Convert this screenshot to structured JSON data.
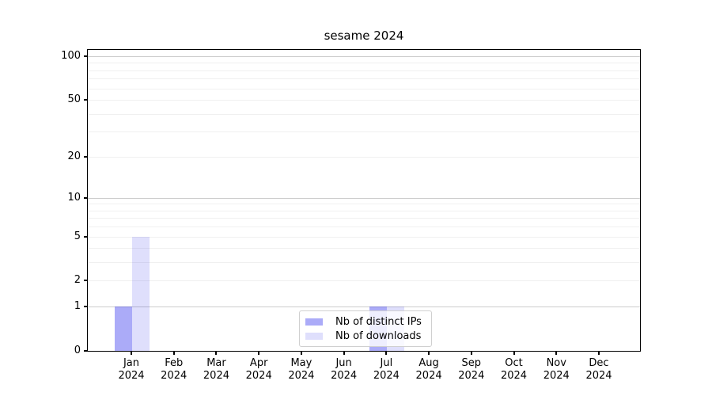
{
  "chart_data": {
    "type": "bar",
    "title": "sesame 2024",
    "categories": [
      "Jan",
      "Feb",
      "Mar",
      "Apr",
      "May",
      "Jun",
      "Jul",
      "Aug",
      "Sep",
      "Oct",
      "Nov",
      "Dec"
    ],
    "year_label": "2024",
    "series": [
      {
        "name": "Nb of distinct IPs",
        "color": "#a9a9f3",
        "fill": "rgba(10,10,235,0.34)",
        "values": [
          1,
          0,
          0,
          0,
          0,
          0,
          1,
          0,
          0,
          0,
          0,
          0
        ]
      },
      {
        "name": "Nb of downloads",
        "color": "#dcdcf8",
        "fill": "rgba(10,10,235,0.13)",
        "values": [
          5,
          0,
          0,
          0,
          0,
          0,
          1,
          0,
          0,
          0,
          0,
          0
        ]
      }
    ],
    "xlabel": "",
    "ylabel": "",
    "y_axis": {
      "scale": "log1p",
      "ylim": [
        0,
        111
      ],
      "tick_values": [
        100,
        50,
        20,
        10,
        5,
        2,
        1,
        0
      ],
      "tick_labels": [
        "100",
        "50",
        "20",
        "10",
        "5",
        "2",
        "1",
        "0"
      ],
      "major_grid_values": [
        100,
        10,
        1
      ],
      "minor_grid_values": [
        90,
        80,
        70,
        60,
        50,
        40,
        30,
        20,
        9,
        8,
        7,
        6,
        5,
        4,
        3,
        2
      ]
    },
    "grid": true,
    "legend_position": "lower center"
  },
  "colors": {
    "background": "#ffffff",
    "axis": "#000000",
    "major_grid": "#cccccc",
    "minor_grid": "#f0f0f0",
    "legend_border": "#d0d0d0",
    "legend_background": "rgba(255,255,255,0.8)",
    "text": "#000000"
  }
}
